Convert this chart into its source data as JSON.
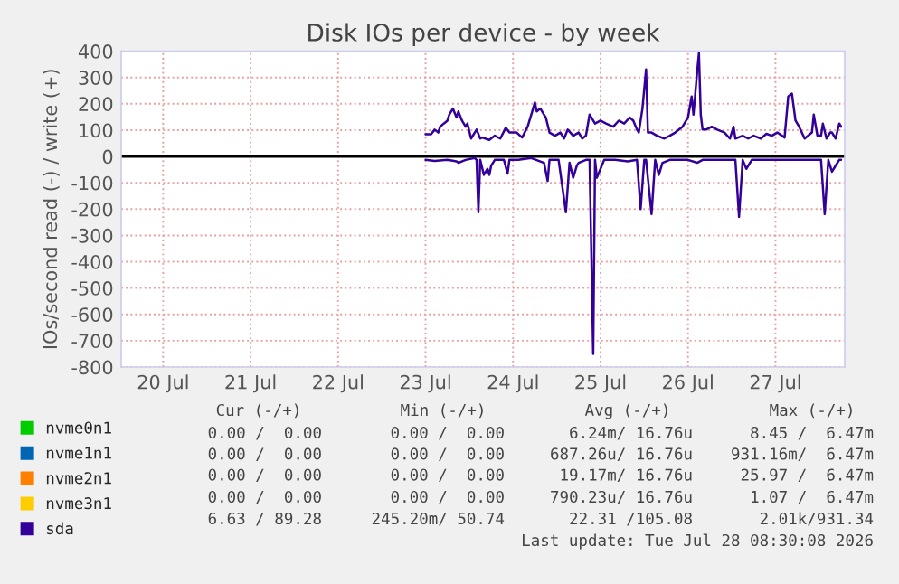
{
  "chart_data": {
    "type": "line",
    "title": "Disk IOs per device - by week",
    "ylabel": "IOs/second read (-) / write (+)",
    "xlim": [
      "2026-07-20T00:30",
      "2026-07-28T07:00"
    ],
    "xticks": [
      {
        "value": "2026-07-20T12:00",
        "label": "20 Jul"
      },
      {
        "value": "2026-07-21T12:00",
        "label": "21 Jul"
      },
      {
        "value": "2026-07-22T12:00",
        "label": "22 Jul"
      },
      {
        "value": "2026-07-23T12:00",
        "label": "23 Jul"
      },
      {
        "value": "2026-07-24T12:00",
        "label": "24 Jul"
      },
      {
        "value": "2026-07-25T12:00",
        "label": "25 Jul"
      },
      {
        "value": "2026-07-26T12:00",
        "label": "26 Jul"
      },
      {
        "value": "2026-07-27T12:00",
        "label": "27 Jul"
      }
    ],
    "ylim": [
      -800,
      400
    ],
    "yticks": [
      -800,
      -700,
      -600,
      -500,
      -400,
      -300,
      -200,
      -100,
      0,
      100,
      200,
      300,
      400
    ],
    "grid": true,
    "legend": "bottom",
    "marker": "none",
    "line_style": "solid",
    "ref_lines": [
      {
        "axis": "y",
        "value": 0,
        "color": "#000000"
      }
    ],
    "series": [
      {
        "name": "nvme0n1",
        "color": "#00cc00"
      },
      {
        "name": "nvme1n1",
        "color": "#0066b3"
      },
      {
        "name": "nvme2n1",
        "color": "#ff8000"
      },
      {
        "name": "nvme3n1",
        "color": "#ffcc00"
      },
      {
        "name": "sda",
        "color": "#330099",
        "x": [
          "2026-07-23T12:00",
          "2026-07-23T13:30",
          "2026-07-23T14:30",
          "2026-07-23T15:30",
          "2026-07-23T16:00",
          "2026-07-23T17:00",
          "2026-07-23T18:00",
          "2026-07-23T18:30",
          "2026-07-23T19:30",
          "2026-07-23T20:30",
          "2026-07-23T21:00",
          "2026-07-23T22:00",
          "2026-07-23T23:00",
          "2026-07-23T23:30",
          "2026-07-24T00:30",
          "2026-07-24T01:30",
          "2026-07-24T02:00",
          "2026-07-24T03:00",
          "2026-07-24T03:30",
          "2026-07-24T05:30",
          "2026-07-24T07:00",
          "2026-07-24T08:30",
          "2026-07-24T10:00",
          "2026-07-24T11:00",
          "2026-07-24T13:00",
          "2026-07-24T14:30",
          "2026-07-24T16:00",
          "2026-07-24T17:00",
          "2026-07-24T18:00",
          "2026-07-24T18:30",
          "2026-07-24T19:30",
          "2026-07-24T20:30",
          "2026-07-24T21:00",
          "2026-07-24T22:00",
          "2026-07-24T23:30",
          "2026-07-25T01:00",
          "2026-07-25T02:00",
          "2026-07-25T03:00",
          "2026-07-25T04:30",
          "2026-07-25T06:00",
          "2026-07-25T07:00",
          "2026-07-25T08:00",
          "2026-07-25T09:00",
          "2026-07-25T10:30",
          "2026-07-25T12:00",
          "2026-07-25T13:30",
          "2026-07-25T15:30",
          "2026-07-25T17:00",
          "2026-07-25T18:30",
          "2026-07-25T20:00",
          "2026-07-25T21:00",
          "2026-07-25T22:00",
          "2026-07-25T22:30",
          "2026-07-25T23:30",
          "2026-07-26T00:30",
          "2026-07-26T01:00",
          "2026-07-26T02:00",
          "2026-07-26T03:30",
          "2026-07-26T05:30",
          "2026-07-26T07:00",
          "2026-07-26T08:30",
          "2026-07-26T10:30",
          "2026-07-26T12:00",
          "2026-07-26T13:00",
          "2026-07-26T13:30",
          "2026-07-26T14:30",
          "2026-07-26T15:00",
          "2026-07-26T15:30",
          "2026-07-26T16:00",
          "2026-07-26T17:00",
          "2026-07-26T18:30",
          "2026-07-26T20:00",
          "2026-07-26T22:00",
          "2026-07-26T23:30",
          "2026-07-27T00:30",
          "2026-07-27T01:00",
          "2026-07-27T03:00",
          "2026-07-27T04:30",
          "2026-07-27T06:00",
          "2026-07-27T08:00",
          "2026-07-27T09:30",
          "2026-07-27T11:00",
          "2026-07-27T12:30",
          "2026-07-27T14:30",
          "2026-07-27T15:30",
          "2026-07-27T16:30",
          "2026-07-27T17:30",
          "2026-07-27T18:30",
          "2026-07-27T20:00",
          "2026-07-27T22:00",
          "2026-07-27T22:30",
          "2026-07-27T23:30",
          "2026-07-28T00:30",
          "2026-07-28T01:00",
          "2026-07-28T02:00",
          "2026-07-28T03:00",
          "2026-07-28T03:30",
          "2026-07-28T04:30",
          "2026-07-28T05:30",
          "2026-07-28T06:00"
        ],
        "values": [
          84,
          84,
          102,
          91,
          113,
          125,
          136,
          159,
          182,
          148,
          171,
          136,
          113,
          125,
          68,
          91,
          102,
          68,
          72,
          63,
          79,
          68,
          109,
          91,
          91,
          72,
          113,
          159,
          205,
          171,
          182,
          159,
          148,
          91,
          79,
          91,
          68,
          102,
          79,
          91,
          68,
          79,
          159,
          125,
          136,
          125,
          113,
          136,
          125,
          148,
          136,
          102,
          91,
          182,
          331,
          91,
          91,
          79,
          68,
          79,
          91,
          113,
          148,
          228,
          159,
          320,
          393,
          159,
          102,
          102,
          113,
          102,
          91,
          68,
          113,
          68,
          79,
          68,
          79,
          68,
          86,
          79,
          91,
          72,
          228,
          239,
          136,
          113,
          68,
          91,
          159,
          79,
          79,
          125,
          68,
          91,
          91,
          68,
          125,
          113
        ]
      },
      {
        "color": "#330099",
        "x": [
          "2026-07-23T12:00",
          "2026-07-23T14:30",
          "2026-07-23T18:00",
          "2026-07-23T20:30",
          "2026-07-23T21:00",
          "2026-07-23T23:00",
          "2026-07-24T01:30",
          "2026-07-24T02:00",
          "2026-07-24T02:30",
          "2026-07-24T03:00",
          "2026-07-24T04:00",
          "2026-07-24T05:00",
          "2026-07-24T05:30",
          "2026-07-24T06:00",
          "2026-07-24T07:00",
          "2026-07-24T09:30",
          "2026-07-24T10:30",
          "2026-07-24T11:00",
          "2026-07-24T13:30",
          "2026-07-24T17:00",
          "2026-07-24T20:30",
          "2026-07-24T21:30",
          "2026-07-24T22:00",
          "2026-07-25T00:30",
          "2026-07-25T02:30",
          "2026-07-25T03:30",
          "2026-07-25T04:30",
          "2026-07-25T05:30",
          "2026-07-25T06:00",
          "2026-07-25T08:00",
          "2026-07-25T09:00",
          "2026-07-25T10:00",
          "2026-07-25T10:30",
          "2026-07-25T11:00",
          "2026-07-25T12:00",
          "2026-07-25T13:00",
          "2026-07-25T16:00",
          "2026-07-25T19:30",
          "2026-07-25T22:00",
          "2026-07-25T23:00",
          "2026-07-26T00:00",
          "2026-07-26T00:30",
          "2026-07-26T02:00",
          "2026-07-26T03:00",
          "2026-07-26T04:00",
          "2026-07-26T05:00",
          "2026-07-26T07:00",
          "2026-07-26T12:00",
          "2026-07-26T14:30",
          "2026-07-26T16:00",
          "2026-07-26T20:00",
          "2026-07-27T01:00",
          "2026-07-27T02:00",
          "2026-07-27T03:00",
          "2026-07-27T04:00",
          "2026-07-27T05:30",
          "2026-07-27T11:00",
          "2026-07-27T21:00",
          "2026-07-28T00:30",
          "2026-07-28T01:30",
          "2026-07-28T02:30",
          "2026-07-28T03:30",
          "2026-07-28T04:30",
          "2026-07-28T05:30",
          "2026-07-28T06:00"
        ],
        "values": [
          -13,
          -17,
          -13,
          -19,
          -24,
          -13,
          -6,
          -13,
          -212,
          -13,
          -70,
          -47,
          -70,
          -35,
          -13,
          -13,
          -65,
          -13,
          -13,
          -6,
          -24,
          -93,
          -13,
          -13,
          -212,
          -24,
          -81,
          -35,
          -24,
          -13,
          -13,
          -750,
          -13,
          -81,
          -47,
          -13,
          -13,
          -19,
          -13,
          -200,
          -13,
          -13,
          -219,
          -13,
          -70,
          -24,
          -13,
          -13,
          -24,
          -13,
          -13,
          -13,
          -230,
          -13,
          -47,
          -13,
          -13,
          -13,
          -13,
          -219,
          -13,
          -58,
          -35,
          -13,
          -13
        ]
      }
    ],
    "annotations": [
      "Cur (-/+)",
      "Min (-/+)",
      "Avg (-/+)",
      "Max (-/+)",
      "0.00 /  0.00",
      "0.00 /  0.00",
      "6.24m/ 16.76u",
      "8.45 /  6.47m",
      "0.00 /  0.00",
      "0.00 /  0.00",
      "687.26u/ 16.76u",
      "931.16m/  6.47m",
      "0.00 /  0.00",
      "0.00 /  0.00",
      "19.17m/ 16.76u",
      "25.97 /  6.47m",
      "0.00 /  0.00",
      "0.00 /  0.00",
      "790.23u/ 16.76u",
      "1.07 /  6.47m",
      "6.63 / 89.28",
      "245.20m/ 50.74",
      "22.31 /105.08",
      "2.01k/931.34",
      "Last update: Tue Jul 28 08:30:08 2026"
    ]
  }
}
